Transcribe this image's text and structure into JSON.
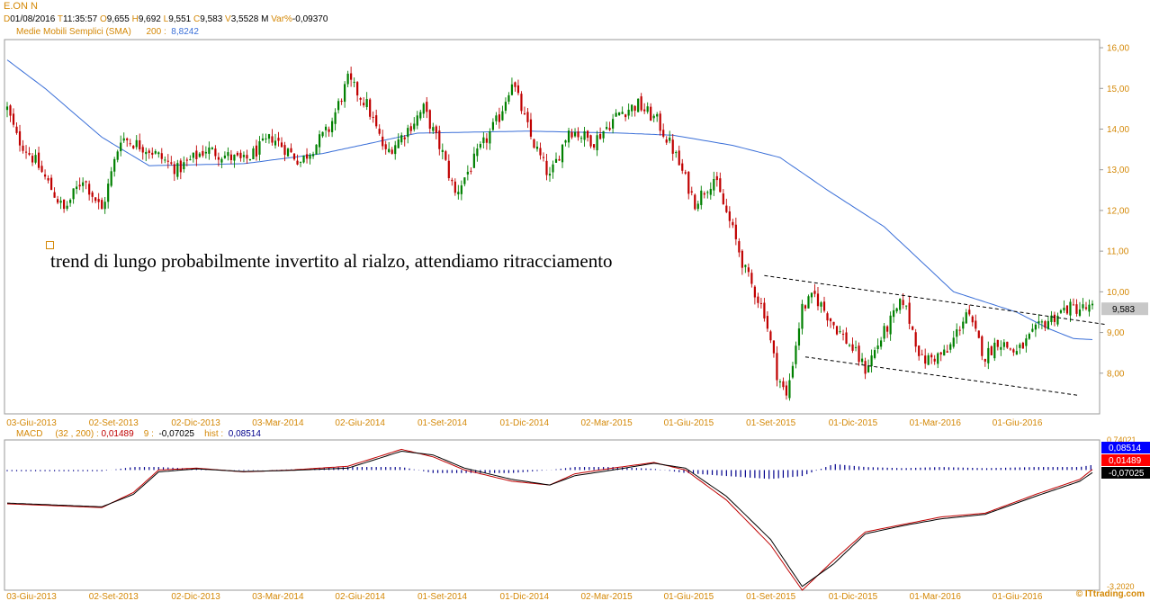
{
  "header": {
    "symbol": "E.ON N",
    "d_label": "D",
    "d_value": "01/08/2016",
    "t_label": "T",
    "t_value": "11:35:57",
    "o_label": "O",
    "o_value": "9,655",
    "h_label": "H",
    "h_value": "9,692",
    "l_label": "L",
    "l_value": "9,551",
    "c_label": "C",
    "c_value": "9,583",
    "v_label": "V",
    "v_value": "3,5528 M",
    "var_label": "Var%",
    "var_value": "-0,09370",
    "sma_label": "Medie Mobili Semplici (SMA)",
    "sma_period": "200 :",
    "sma_value": "8,8242"
  },
  "annotation": "trend di lungo probabilmente invertito al rialzo, attendiamo ritracciamento",
  "macd_header": {
    "label": "MACD",
    "params": "(32 , 200) :",
    "macd_value": "0,01489",
    "signal_label": "9 :",
    "signal_value": "-0,07025",
    "hist_label": "hist :",
    "hist_value": "0,08514"
  },
  "copyright": "© ITtrading.com",
  "colors": {
    "up": "#008000",
    "down": "#c00000",
    "sma": "#3a6fd8",
    "macd": "#c00000",
    "signal": "#000000",
    "hist": "#00008b",
    "axis_label": "#d48806",
    "hist_tag": "#0000ff",
    "macd_tag": "#ff0000",
    "signal_tag": "#000000"
  },
  "chart_data": [
    {
      "type": "candlestick",
      "title": "E.ON N",
      "x_tick_labels": [
        "03-Giu-2013",
        "02-Set-2013",
        "02-Dic-2013",
        "03-Mar-2014",
        "02-Giu-2014",
        "01-Set-2014",
        "01-Dic-2014",
        "02-Mar-2015",
        "01-Giu-2015",
        "01-Set-2015",
        "01-Dic-2015",
        "01-Mar-2016",
        "01-Giu-2016"
      ],
      "y_tick_labels": [
        "16,00",
        "15,00",
        "14,00",
        "13,00",
        "12,00",
        "11,00",
        "10,00",
        "9,00",
        "8,00"
      ],
      "ylim": [
        7.0,
        16.2
      ],
      "last_price_tag": "9,583",
      "close_keypoints": [
        [
          0,
          14.5
        ],
        [
          3,
          13.8
        ],
        [
          9,
          13.2
        ],
        [
          18,
          12.0
        ],
        [
          24,
          12.8
        ],
        [
          30,
          12.0
        ],
        [
          36,
          13.8
        ],
        [
          45,
          13.5
        ],
        [
          54,
          13.0
        ],
        [
          63,
          13.5
        ],
        [
          75,
          13.2
        ],
        [
          84,
          13.8
        ],
        [
          93,
          13.2
        ],
        [
          102,
          14.0
        ],
        [
          108,
          15.2
        ],
        [
          114,
          14.6
        ],
        [
          120,
          13.4
        ],
        [
          126,
          13.9
        ],
        [
          132,
          14.5
        ],
        [
          138,
          13.4
        ],
        [
          142,
          12.4
        ],
        [
          150,
          13.5
        ],
        [
          156,
          14.3
        ],
        [
          160,
          15.2
        ],
        [
          166,
          13.8
        ],
        [
          172,
          12.8
        ],
        [
          178,
          14.0
        ],
        [
          186,
          13.7
        ],
        [
          194,
          14.4
        ],
        [
          200,
          14.6
        ],
        [
          206,
          14.2
        ],
        [
          211,
          13.5
        ],
        [
          218,
          12.2
        ],
        [
          224,
          12.8
        ],
        [
          230,
          11.5
        ],
        [
          234,
          10.5
        ],
        [
          237,
          10.0
        ],
        [
          240,
          9.5
        ],
        [
          244,
          8.0
        ],
        [
          247,
          7.4
        ],
        [
          252,
          9.6
        ],
        [
          256,
          9.9
        ],
        [
          262,
          9.2
        ],
        [
          268,
          8.6
        ],
        [
          272,
          8.1
        ],
        [
          278,
          9.0
        ],
        [
          284,
          9.8
        ],
        [
          290,
          8.3
        ],
        [
          298,
          8.5
        ],
        [
          304,
          9.5
        ],
        [
          310,
          8.4
        ],
        [
          314,
          8.8
        ],
        [
          320,
          8.5
        ],
        [
          328,
          9.2
        ],
        [
          336,
          9.6
        ],
        [
          344,
          9.583
        ]
      ],
      "candle_count": 345,
      "sma_200_keypoints": [
        [
          0,
          15.7
        ],
        [
          12,
          15.0
        ],
        [
          30,
          13.8
        ],
        [
          45,
          13.1
        ],
        [
          75,
          13.15
        ],
        [
          100,
          13.4
        ],
        [
          130,
          13.9
        ],
        [
          165,
          13.95
        ],
        [
          195,
          13.9
        ],
        [
          211,
          13.85
        ],
        [
          230,
          13.6
        ],
        [
          245,
          13.3
        ],
        [
          260,
          12.5
        ],
        [
          278,
          11.6
        ],
        [
          300,
          10.0
        ],
        [
          320,
          9.5
        ],
        [
          330,
          9.1
        ],
        [
          338,
          8.85
        ],
        [
          344,
          8.8242
        ]
      ],
      "trendlines": [
        {
          "name": "upper-channel",
          "from": [
            240,
            10.4
          ],
          "to": [
            348,
            9.2
          ]
        },
        {
          "name": "lower-channel",
          "from": [
            253,
            8.4
          ],
          "to": [
            340,
            7.45
          ]
        }
      ]
    },
    {
      "type": "line",
      "title": "MACD",
      "series": [
        {
          "name": "MACD",
          "values": [
            [
              0,
              -0.9
            ],
            [
              15,
              -0.95
            ],
            [
              30,
              -1.0
            ],
            [
              40,
              -0.6
            ],
            [
              48,
              0.0
            ],
            [
              60,
              0.05
            ],
            [
              75,
              -0.05
            ],
            [
              90,
              0.0
            ],
            [
              108,
              0.1
            ],
            [
              125,
              0.55
            ],
            [
              135,
              0.35
            ],
            [
              145,
              0.0
            ],
            [
              160,
              -0.3
            ],
            [
              172,
              -0.4
            ],
            [
              180,
              -0.1
            ],
            [
              192,
              0.05
            ],
            [
              205,
              0.2
            ],
            [
              215,
              0.0
            ],
            [
              228,
              -0.8
            ],
            [
              242,
              -2.0
            ],
            [
              252,
              -3.2
            ],
            [
              262,
              -2.4
            ],
            [
              272,
              -1.65
            ],
            [
              284,
              -1.45
            ],
            [
              296,
              -1.25
            ],
            [
              310,
              -1.15
            ],
            [
              326,
              -0.65
            ],
            [
              340,
              -0.25
            ],
            [
              344,
              0.01489
            ]
          ]
        },
        {
          "name": "signal",
          "values": [
            [
              0,
              -0.88
            ],
            [
              15,
              -0.93
            ],
            [
              30,
              -0.98
            ],
            [
              40,
              -0.65
            ],
            [
              48,
              -0.05
            ],
            [
              60,
              0.03
            ],
            [
              75,
              -0.04
            ],
            [
              90,
              -0.01
            ],
            [
              108,
              0.05
            ],
            [
              125,
              0.5
            ],
            [
              135,
              0.4
            ],
            [
              145,
              0.05
            ],
            [
              160,
              -0.25
            ],
            [
              172,
              -0.4
            ],
            [
              180,
              -0.15
            ],
            [
              192,
              0.0
            ],
            [
              205,
              0.18
            ],
            [
              215,
              0.05
            ],
            [
              228,
              -0.7
            ],
            [
              242,
              -1.85
            ],
            [
              252,
              -3.1
            ],
            [
              262,
              -2.5
            ],
            [
              272,
              -1.7
            ],
            [
              284,
              -1.48
            ],
            [
              296,
              -1.3
            ],
            [
              310,
              -1.18
            ],
            [
              326,
              -0.7
            ],
            [
              340,
              -0.3
            ],
            [
              344,
              -0.07025
            ]
          ]
        }
      ],
      "histogram_last": 0.08514,
      "ylim": [
        -3.2,
        0.8
      ],
      "y_tick_labels": [
        "0,74021",
        "-3,2020"
      ],
      "value_tags": [
        "0,08514",
        "0,01489",
        "-0,07025"
      ]
    }
  ]
}
